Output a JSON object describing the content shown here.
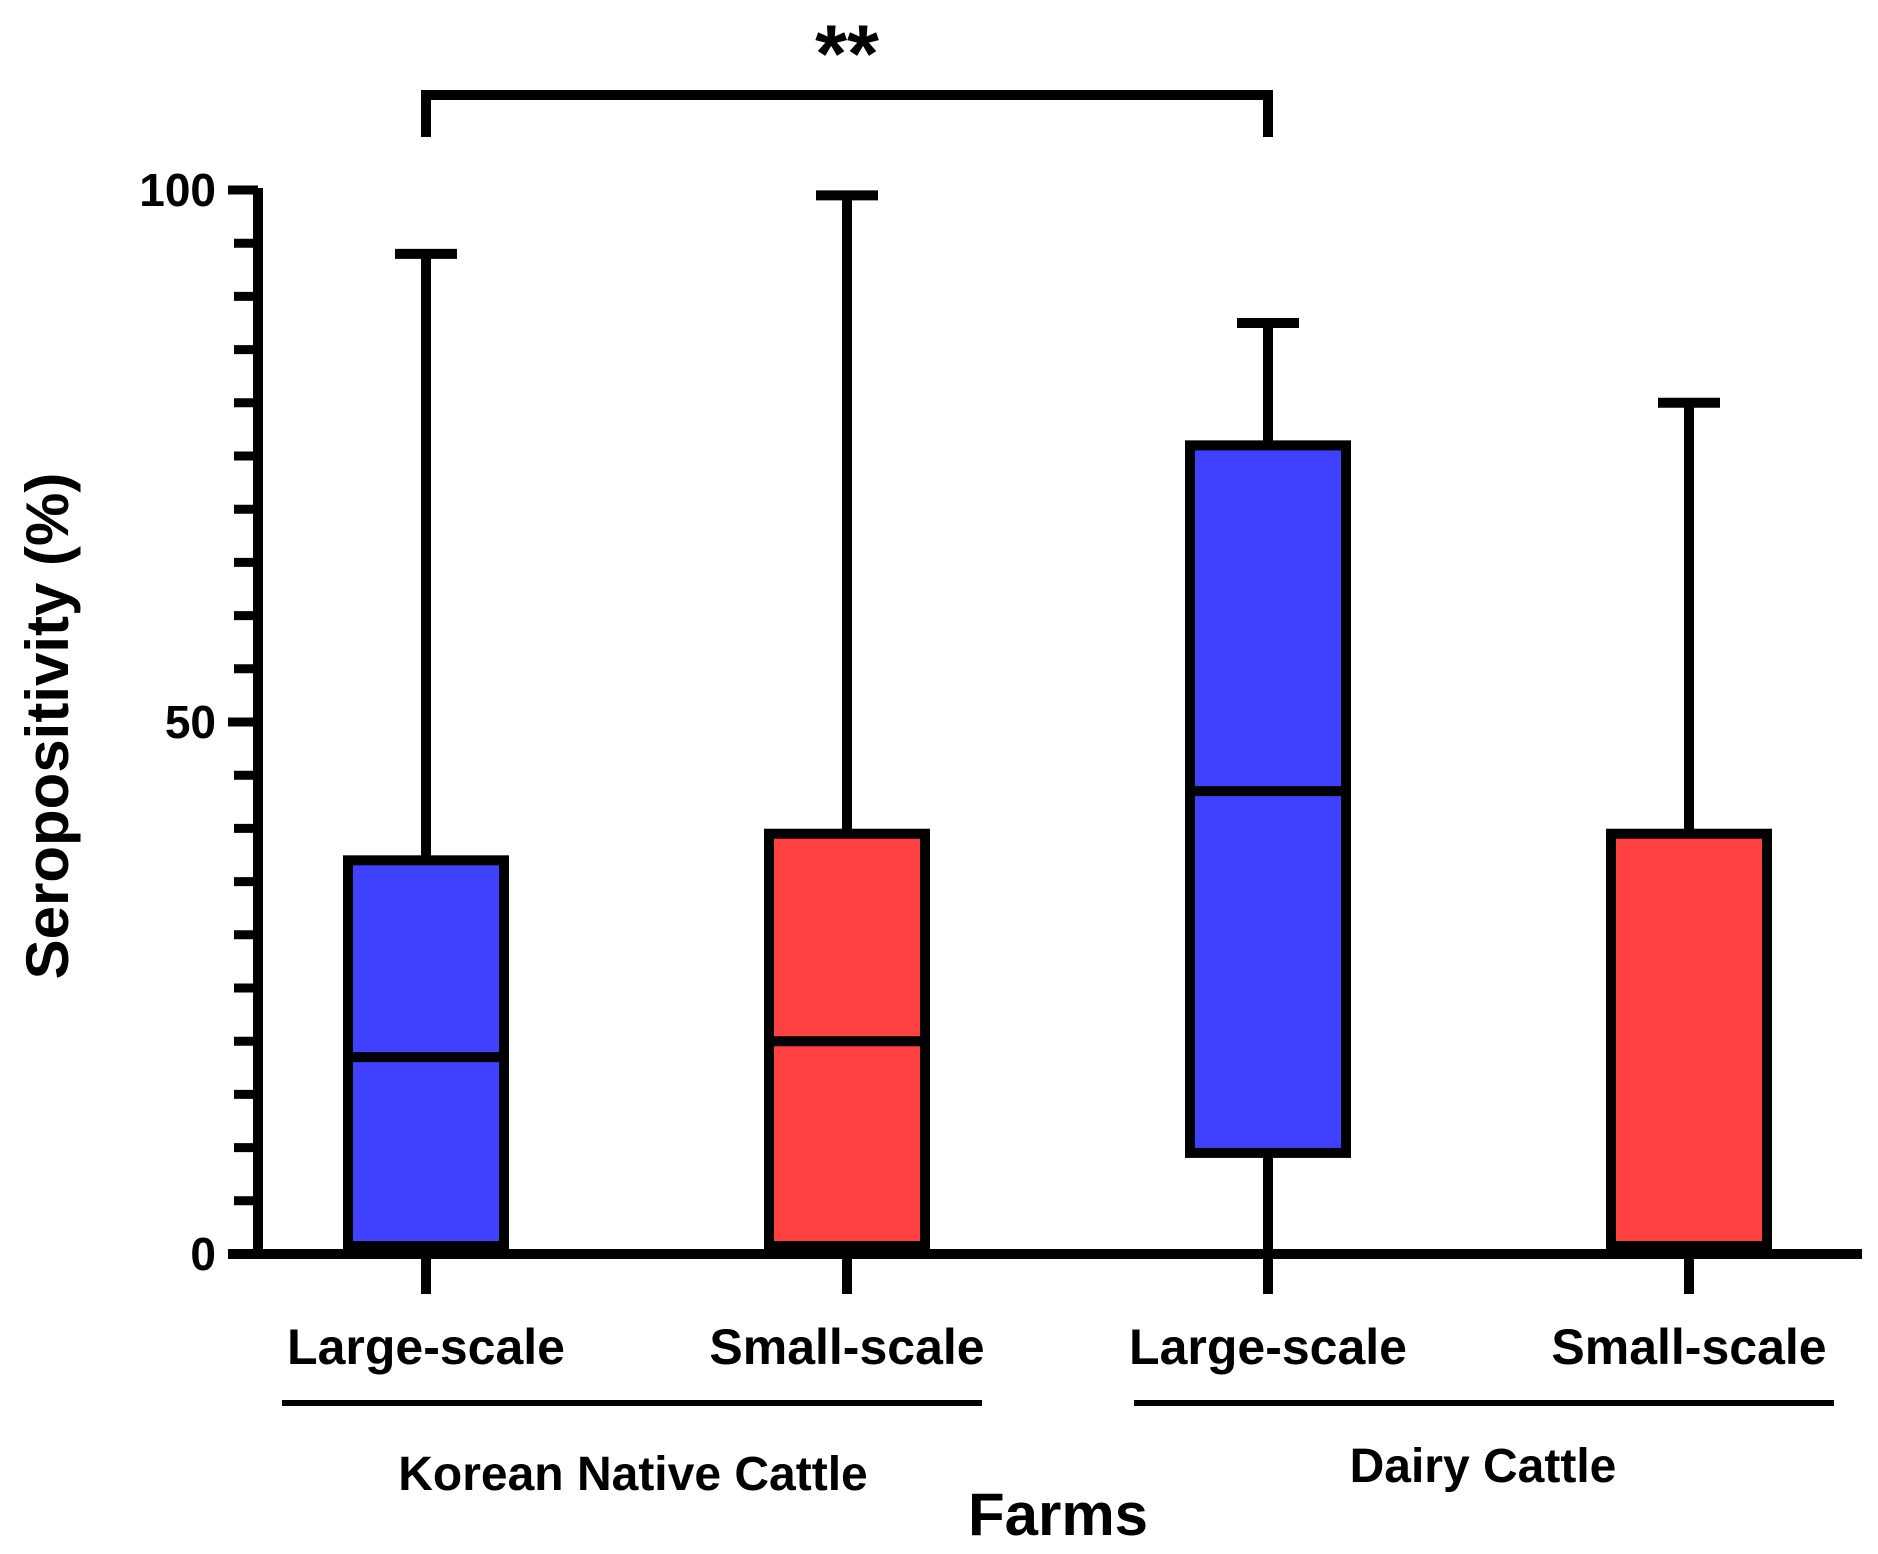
{
  "chart_data": {
    "type": "boxplot",
    "title": "",
    "xlabel": "Farms",
    "ylabel": "Seropositivity (%)",
    "ylim": [
      0,
      100
    ],
    "yticks": [
      0,
      50,
      100
    ],
    "minor_tick_step": 5,
    "categories": [
      "Large-scale",
      "Small-scale",
      "Large-scale",
      "Small-scale"
    ],
    "groups": [
      {
        "label": "Korean Native Cattle",
        "categories": [
          0,
          1
        ]
      },
      {
        "label": "Dairy Cattle",
        "categories": [
          2,
          3
        ]
      }
    ],
    "series": [
      {
        "category": "Large-scale",
        "group": "Korean Native Cattle",
        "color": "#4040ff",
        "min": 0,
        "q1": 0,
        "median": 18.5,
        "q3": 37,
        "max": 94
      },
      {
        "category": "Small-scale",
        "group": "Korean Native Cattle",
        "color": "#ff4040",
        "min": 0,
        "q1": 0,
        "median": 20,
        "q3": 39.5,
        "max": 99.5
      },
      {
        "category": "Large-scale",
        "group": "Dairy Cattle",
        "color": "#4040ff",
        "min": 0,
        "q1": 9.5,
        "median": 43.5,
        "q3": 76,
        "max": 87.5
      },
      {
        "category": "Small-scale",
        "group": "Dairy Cattle",
        "color": "#ff4040",
        "min": 0,
        "q1": 0,
        "median": 0,
        "q3": 39.5,
        "max": 80
      }
    ],
    "annotations": [
      {
        "text": "**",
        "from_category": 0,
        "to_category": 2
      }
    ]
  }
}
